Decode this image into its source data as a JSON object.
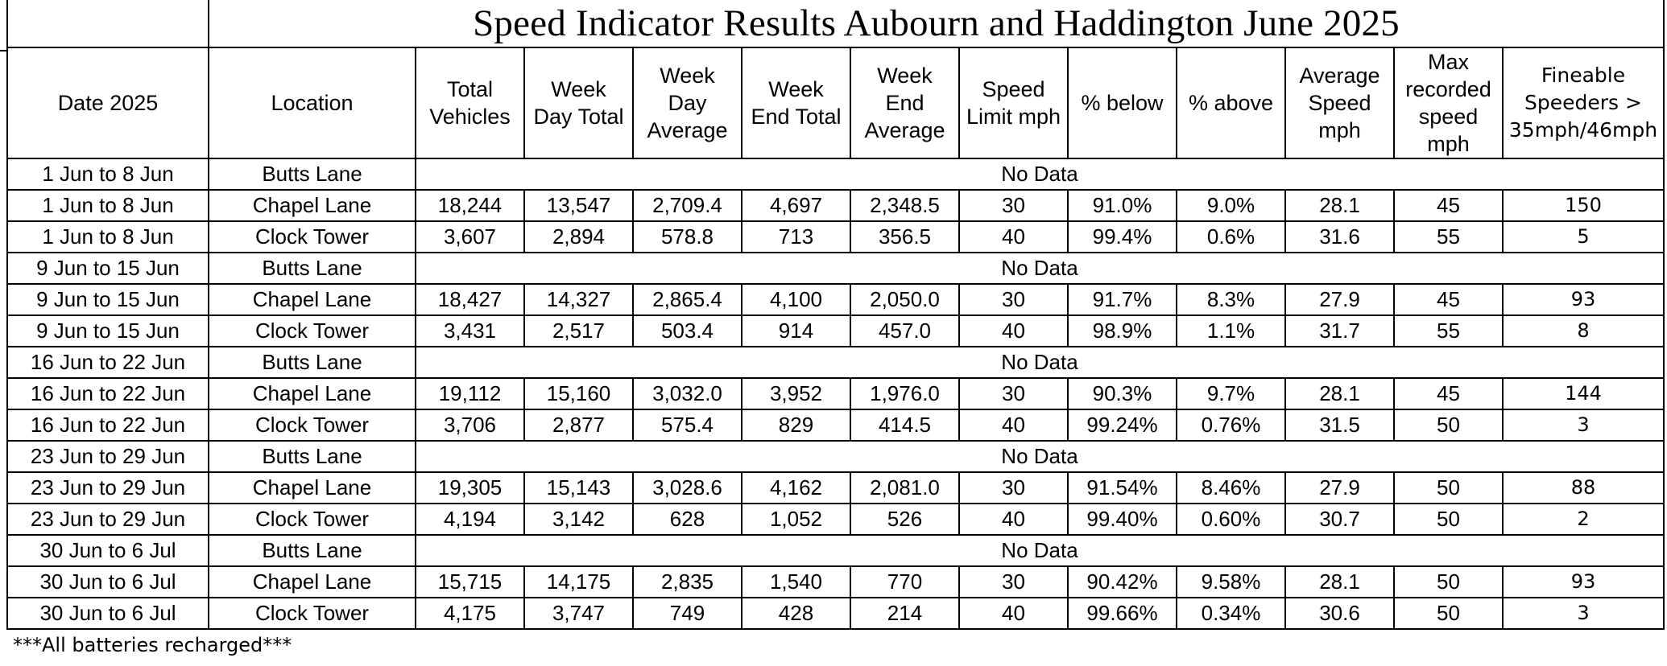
{
  "title": "Speed Indicator Results Aubourn and Haddington June 2025",
  "headers": [
    [
      "Date 2025"
    ],
    [
      "Location"
    ],
    [
      "Total",
      "Vehicles"
    ],
    [
      "Week",
      "Day Total"
    ],
    [
      "Week",
      "Day",
      "Average"
    ],
    [
      "Week",
      "End Total"
    ],
    [
      "Week",
      "End",
      "Average"
    ],
    [
      "Speed",
      "Limit mph"
    ],
    [
      "% below"
    ],
    [
      "% above"
    ],
    [
      "Average",
      "Speed",
      "mph"
    ],
    [
      "Max",
      "recorded",
      "speed",
      "mph"
    ],
    [
      "Fineable",
      "Speeders >",
      "35mph/46mph"
    ]
  ],
  "no_data_label": "No Data",
  "rows": [
    {
      "date": "1 Jun to 8 Jun",
      "location": "Butts Lane",
      "no_data": true
    },
    {
      "date": "1 Jun to 8 Jun",
      "location": "Chapel Lane",
      "values": [
        "18,244",
        "13,547",
        "2,709.4",
        "4,697",
        "2,348.5",
        "30",
        "91.0%",
        "9.0%",
        "28.1",
        "45",
        "150"
      ]
    },
    {
      "date": "1 Jun to 8 Jun",
      "location": "Clock Tower",
      "values": [
        "3,607",
        "2,894",
        "578.8",
        "713",
        "356.5",
        "40",
        "99.4%",
        "0.6%",
        "31.6",
        "55",
        "5"
      ]
    },
    {
      "date": "9 Jun to 15 Jun",
      "location": "Butts Lane",
      "no_data": true
    },
    {
      "date": "9 Jun to 15 Jun",
      "location": "Chapel Lane",
      "values": [
        "18,427",
        "14,327",
        "2,865.4",
        "4,100",
        "2,050.0",
        "30",
        "91.7%",
        "8.3%",
        "27.9",
        "45",
        "93"
      ]
    },
    {
      "date": "9 Jun to 15 Jun",
      "location": "Clock Tower",
      "values": [
        "3,431",
        "2,517",
        "503.4",
        "914",
        "457.0",
        "40",
        "98.9%",
        "1.1%",
        "31.7",
        "55",
        "8"
      ]
    },
    {
      "date": "16 Jun to 22 Jun",
      "location": "Butts Lane",
      "no_data": true
    },
    {
      "date": "16 Jun to 22 Jun",
      "location": "Chapel Lane",
      "values": [
        "19,112",
        "15,160",
        "3,032.0",
        "3,952",
        "1,976.0",
        "30",
        "90.3%",
        "9.7%",
        "28.1",
        "45",
        "144"
      ]
    },
    {
      "date": "16 Jun to 22 Jun",
      "location": "Clock Tower",
      "values": [
        "3,706",
        "2,877",
        "575.4",
        "829",
        "414.5",
        "40",
        "99.24%",
        "0.76%",
        "31.5",
        "50",
        "3"
      ]
    },
    {
      "date": "23 Jun to 29 Jun",
      "location": "Butts Lane",
      "no_data": true
    },
    {
      "date": "23 Jun to 29 Jun",
      "location": "Chapel Lane",
      "values": [
        "19,305",
        "15,143",
        "3,028.6",
        "4,162",
        "2,081.0",
        "30",
        "91.54%",
        "8.46%",
        "27.9",
        "50",
        "88"
      ]
    },
    {
      "date": "23 Jun to 29 Jun",
      "location": "Clock Tower",
      "values": [
        "4,194",
        "3,142",
        "628",
        "1,052",
        "526",
        "40",
        "99.40%",
        "0.60%",
        "30.7",
        "50",
        "2"
      ]
    },
    {
      "date": "30 Jun to 6 Jul",
      "location": "Butts Lane",
      "no_data": true
    },
    {
      "date": "30 Jun to 6 Jul",
      "location": "Chapel Lane",
      "values": [
        "15,715",
        "14,175",
        "2,835",
        "1,540",
        "770",
        "30",
        "90.42%",
        "9.58%",
        "28.1",
        "50",
        "93"
      ]
    },
    {
      "date": "30 Jun to 6 Jul",
      "location": "Clock Tower",
      "values": [
        "4,175",
        "3,747",
        "749",
        "428",
        "214",
        "40",
        "99.66%",
        "0.34%",
        "30.6",
        "50",
        "3"
      ]
    }
  ],
  "footnote": "***All batteries recharged***"
}
